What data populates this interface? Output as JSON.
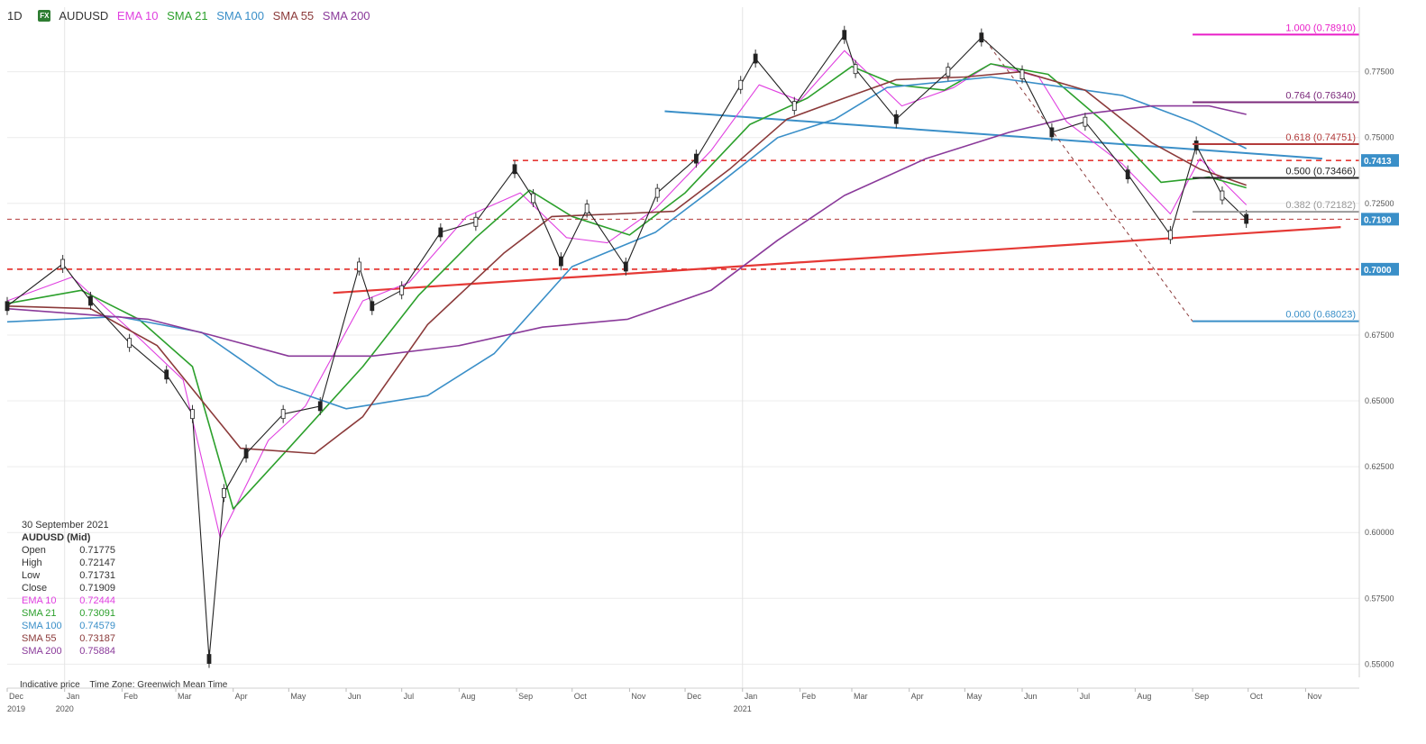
{
  "header": {
    "timeframe": "1D",
    "badge": "FX",
    "symbol": "AUDUSD",
    "indicators": [
      {
        "label": "EMA 10",
        "color": "#e040e0"
      },
      {
        "label": "SMA 21",
        "color": "#2ca02c"
      },
      {
        "label": "SMA 100",
        "color": "#3a8fc8"
      },
      {
        "label": "SMA 55",
        "color": "#8b3a3a"
      },
      {
        "label": "SMA 200",
        "color": "#8a3a9a"
      }
    ]
  },
  "info_panel": {
    "date": "30 September 2021",
    "title": "AUDUSD (Mid)",
    "rows": [
      {
        "label": "Open",
        "value": "0.71775",
        "color": "#333333"
      },
      {
        "label": "High",
        "value": "0.72147",
        "color": "#333333"
      },
      {
        "label": "Low",
        "value": "0.71731",
        "color": "#333333"
      },
      {
        "label": "Close",
        "value": "0.71909",
        "color": "#333333"
      },
      {
        "label": "EMA 10",
        "value": "0.72444",
        "color": "#e040e0"
      },
      {
        "label": "SMA 21",
        "value": "0.73091",
        "color": "#2ca02c"
      },
      {
        "label": "SMA 100",
        "value": "0.74579",
        "color": "#3a8fc8"
      },
      {
        "label": "SMA 55",
        "value": "0.73187",
        "color": "#8b3a3a"
      },
      {
        "label": "SMA 200",
        "value": "0.75884",
        "color": "#8a3a9a"
      }
    ]
  },
  "footnote": {
    "price_type": "Indicative price",
    "timezone": "Time Zone: Greenwich Mean Time"
  },
  "chart_data": {
    "type": "candlestick",
    "ylim": [
      0.545,
      0.7995
    ],
    "y_ticks": [
      "0.77500",
      "0.75000",
      "0.72500",
      "0.70000",
      "0.67500",
      "0.65000",
      "0.62500",
      "0.60000",
      "0.57500",
      "0.55000"
    ],
    "y_tick_values": [
      0.775,
      0.75,
      0.725,
      0.7,
      0.675,
      0.65,
      0.625,
      0.6,
      0.575,
      0.55
    ],
    "x_months": [
      "Dec",
      "Jan",
      "Feb",
      "Mar",
      "Apr",
      "May",
      "Jun",
      "Jul",
      "Aug",
      "Sep",
      "Oct",
      "Nov",
      "Dec",
      "Jan",
      "Feb",
      "Mar",
      "Apr",
      "May",
      "Jun",
      "Jul",
      "Aug",
      "Sep",
      "Oct",
      "Nov"
    ],
    "x_years": [
      "2019",
      "2020",
      "2021"
    ],
    "x_range": [
      "2019-12-01",
      "2021-11-30"
    ],
    "price_labels": [
      {
        "text": "0.7413",
        "value": 0.7413,
        "color": "#3a8fc8"
      },
      {
        "text": "0.7190",
        "value": 0.719,
        "color": "#3a8fc8"
      },
      {
        "text": "0.7000",
        "value": 0.7,
        "color": "#3a8fc8"
      }
    ],
    "fibonacci": {
      "levels": [
        {
          "ratio": "1.000",
          "value": 0.7891,
          "label": "1.000 (0.78910)",
          "color": "#e91ec8"
        },
        {
          "ratio": "0.764",
          "value": 0.7634,
          "label": "0.764 (0.76340)",
          "color": "#7b2a7b"
        },
        {
          "ratio": "0.618",
          "value": 0.74751,
          "label": "0.618 (0.74751)",
          "color": "#b33b3b"
        },
        {
          "ratio": "0.500",
          "value": 0.73466,
          "label": "0.500 (0.73466)",
          "color": "#222222"
        },
        {
          "ratio": "0.382",
          "value": 0.72182,
          "label": "0.382 (0.72182)",
          "color": "#999999"
        },
        {
          "ratio": "0.000",
          "value": 0.68023,
          "label": "0.000 (0.68023)",
          "color": "#3a8fc8"
        }
      ]
    },
    "series": [
      {
        "name": "AUDUSD",
        "kind": "close_path",
        "color": "#222222",
        "points": [
          [
            "2019-12-01",
            0.686
          ],
          [
            "2019-12-31",
            0.702
          ],
          [
            "2020-01-15",
            0.688
          ],
          [
            "2020-02-05",
            0.672
          ],
          [
            "2020-02-25",
            0.66
          ],
          [
            "2020-03-10",
            0.645
          ],
          [
            "2020-03-19",
            0.552
          ],
          [
            "2020-03-27",
            0.615
          ],
          [
            "2020-04-08",
            0.63
          ],
          [
            "2020-04-28",
            0.645
          ],
          [
            "2020-05-18",
            0.648
          ],
          [
            "2020-06-08",
            0.701
          ],
          [
            "2020-06-15",
            0.686
          ],
          [
            "2020-07-01",
            0.692
          ],
          [
            "2020-07-22",
            0.714
          ],
          [
            "2020-08-10",
            0.718
          ],
          [
            "2020-08-31",
            0.738
          ],
          [
            "2020-09-10",
            0.727
          ],
          [
            "2020-09-25",
            0.703
          ],
          [
            "2020-10-09",
            0.723
          ],
          [
            "2020-10-30",
            0.701
          ],
          [
            "2020-11-16",
            0.729
          ],
          [
            "2020-12-07",
            0.742
          ],
          [
            "2020-12-31",
            0.77
          ],
          [
            "2021-01-08",
            0.78
          ],
          [
            "2021-01-29",
            0.762
          ],
          [
            "2021-02-25",
            0.789
          ],
          [
            "2021-03-03",
            0.776
          ],
          [
            "2021-03-25",
            0.757
          ],
          [
            "2021-04-22",
            0.775
          ],
          [
            "2021-05-10",
            0.788
          ],
          [
            "2021-06-01",
            0.774
          ],
          [
            "2021-06-17",
            0.752
          ],
          [
            "2021-07-05",
            0.756
          ],
          [
            "2021-07-28",
            0.736
          ],
          [
            "2021-08-20",
            0.713
          ],
          [
            "2021-09-03",
            0.747
          ],
          [
            "2021-09-17",
            0.728
          ],
          [
            "2021-09-30",
            0.7191
          ]
        ]
      },
      {
        "name": "EMA 10",
        "color": "#e040e0",
        "points": [
          [
            "2019-12-01",
            0.688
          ],
          [
            "2020-01-05",
            0.697
          ],
          [
            "2020-02-10",
            0.674
          ],
          [
            "2020-03-05",
            0.658
          ],
          [
            "2020-03-25",
            0.598
          ],
          [
            "2020-04-20",
            0.635
          ],
          [
            "2020-05-10",
            0.648
          ],
          [
            "2020-06-10",
            0.688
          ],
          [
            "2020-07-05",
            0.695
          ],
          [
            "2020-08-05",
            0.72
          ],
          [
            "2020-09-03",
            0.729
          ],
          [
            "2020-09-28",
            0.712
          ],
          [
            "2020-10-20",
            0.71
          ],
          [
            "2020-11-15",
            0.723
          ],
          [
            "2020-12-15",
            0.745
          ],
          [
            "2021-01-10",
            0.77
          ],
          [
            "2021-02-01",
            0.764
          ],
          [
            "2021-02-25",
            0.783
          ],
          [
            "2021-03-28",
            0.762
          ],
          [
            "2021-04-25",
            0.769
          ],
          [
            "2021-05-15",
            0.778
          ],
          [
            "2021-06-10",
            0.773
          ],
          [
            "2021-06-25",
            0.756
          ],
          [
            "2021-07-25",
            0.74
          ],
          [
            "2021-08-20",
            0.721
          ],
          [
            "2021-09-05",
            0.742
          ],
          [
            "2021-09-30",
            0.7244
          ]
        ]
      },
      {
        "name": "SMA 21",
        "color": "#2ca02c",
        "points": [
          [
            "2019-12-01",
            0.687
          ],
          [
            "2020-01-10",
            0.692
          ],
          [
            "2020-02-10",
            0.681
          ],
          [
            "2020-03-10",
            0.663
          ],
          [
            "2020-04-01",
            0.609
          ],
          [
            "2020-05-01",
            0.632
          ],
          [
            "2020-06-10",
            0.663
          ],
          [
            "2020-07-10",
            0.69
          ],
          [
            "2020-08-10",
            0.712
          ],
          [
            "2020-09-08",
            0.73
          ],
          [
            "2020-10-01",
            0.72
          ],
          [
            "2020-11-01",
            0.713
          ],
          [
            "2020-12-01",
            0.729
          ],
          [
            "2021-01-05",
            0.755
          ],
          [
            "2021-02-05",
            0.765
          ],
          [
            "2021-03-01",
            0.777
          ],
          [
            "2021-03-25",
            0.77
          ],
          [
            "2021-04-20",
            0.768
          ],
          [
            "2021-05-15",
            0.778
          ],
          [
            "2021-06-15",
            0.774
          ],
          [
            "2021-07-15",
            0.756
          ],
          [
            "2021-08-15",
            0.733
          ],
          [
            "2021-09-10",
            0.735
          ],
          [
            "2021-09-30",
            0.7309
          ]
        ]
      },
      {
        "name": "SMA 100",
        "color": "#3a8fc8",
        "points": [
          [
            "2019-12-01",
            0.68
          ],
          [
            "2020-01-30",
            0.682
          ],
          [
            "2020-03-15",
            0.676
          ],
          [
            "2020-04-25",
            0.656
          ],
          [
            "2020-06-01",
            0.647
          ],
          [
            "2020-07-15",
            0.652
          ],
          [
            "2020-08-20",
            0.668
          ],
          [
            "2020-10-01",
            0.701
          ],
          [
            "2020-11-15",
            0.714
          ],
          [
            "2020-12-15",
            0.73
          ],
          [
            "2021-01-20",
            0.75
          ],
          [
            "2021-02-20",
            0.757
          ],
          [
            "2021-03-20",
            0.769
          ],
          [
            "2021-05-15",
            0.773
          ],
          [
            "2021-06-25",
            0.769
          ],
          [
            "2021-07-25",
            0.766
          ],
          [
            "2021-09-01",
            0.756
          ],
          [
            "2021-09-30",
            0.7458
          ]
        ]
      },
      {
        "name": "SMA 55",
        "color": "#8b3a3a",
        "points": [
          [
            "2019-12-01",
            0.686
          ],
          [
            "2020-01-15",
            0.685
          ],
          [
            "2020-02-20",
            0.671
          ],
          [
            "2020-04-05",
            0.632
          ],
          [
            "2020-05-15",
            0.63
          ],
          [
            "2020-06-10",
            0.644
          ],
          [
            "2020-07-15",
            0.679
          ],
          [
            "2020-08-25",
            0.706
          ],
          [
            "2020-09-20",
            0.72
          ],
          [
            "2020-10-25",
            0.721
          ],
          [
            "2020-11-25",
            0.722
          ],
          [
            "2020-12-25",
            0.738
          ],
          [
            "2021-01-25",
            0.757
          ],
          [
            "2021-02-25",
            0.765
          ],
          [
            "2021-03-25",
            0.772
          ],
          [
            "2021-05-01",
            0.773
          ],
          [
            "2021-06-01",
            0.775
          ],
          [
            "2021-07-05",
            0.768
          ],
          [
            "2021-08-10",
            0.748
          ],
          [
            "2021-09-05",
            0.738
          ],
          [
            "2021-09-30",
            0.7319
          ]
        ]
      },
      {
        "name": "SMA 200",
        "color": "#8a3a9a",
        "points": [
          [
            "2019-12-01",
            0.685
          ],
          [
            "2020-02-15",
            0.681
          ],
          [
            "2020-03-20",
            0.675
          ],
          [
            "2020-05-01",
            0.667
          ],
          [
            "2020-06-15",
            0.667
          ],
          [
            "2020-08-01",
            0.671
          ],
          [
            "2020-09-15",
            0.678
          ],
          [
            "2020-10-31",
            0.681
          ],
          [
            "2020-12-15",
            0.692
          ],
          [
            "2021-01-20",
            0.711
          ],
          [
            "2021-02-25",
            0.728
          ],
          [
            "2021-04-10",
            0.742
          ],
          [
            "2021-05-25",
            0.752
          ],
          [
            "2021-07-05",
            0.759
          ],
          [
            "2021-08-10",
            0.762
          ],
          [
            "2021-09-10",
            0.762
          ],
          [
            "2021-09-30",
            0.7588
          ]
        ]
      }
    ],
    "drawings": [
      {
        "name": "support-trendline",
        "color": "#e53935",
        "width": 2.2,
        "dash": "",
        "from": [
          "2020-05-25",
          0.691
        ],
        "to": [
          "2021-11-20",
          0.716
        ]
      },
      {
        "name": "resistance-trendline",
        "color": "#3a8fc8",
        "width": 2,
        "dash": "",
        "from": [
          "2020-11-20",
          0.76
        ],
        "to": [
          "2021-11-10",
          0.742
        ]
      },
      {
        "name": "horizontal-0.7413",
        "color": "#e53935",
        "width": 1.6,
        "dash": "6,5",
        "from": [
          "2020-08-30",
          0.7413
        ],
        "to": [
          "2021-11-30",
          0.7413
        ]
      },
      {
        "name": "horizontal-0.7000",
        "color": "#e53935",
        "width": 1.8,
        "dash": "6,5",
        "from": [
          "2019-12-01",
          0.7
        ],
        "to": [
          "2021-11-30",
          0.7
        ]
      },
      {
        "name": "horizontal-0.7190",
        "color": "#b33b3b",
        "width": 1,
        "dash": "5,4",
        "from": [
          "2019-12-01",
          0.719
        ],
        "to": [
          "2021-11-30",
          0.719
        ]
      },
      {
        "name": "fibonacci-diagonal",
        "color": "#8b3a3a",
        "width": 1,
        "dash": "4,4",
        "from": [
          "2021-05-10",
          0.789
        ],
        "to": [
          "2021-09-01",
          0.6802
        ]
      }
    ]
  }
}
